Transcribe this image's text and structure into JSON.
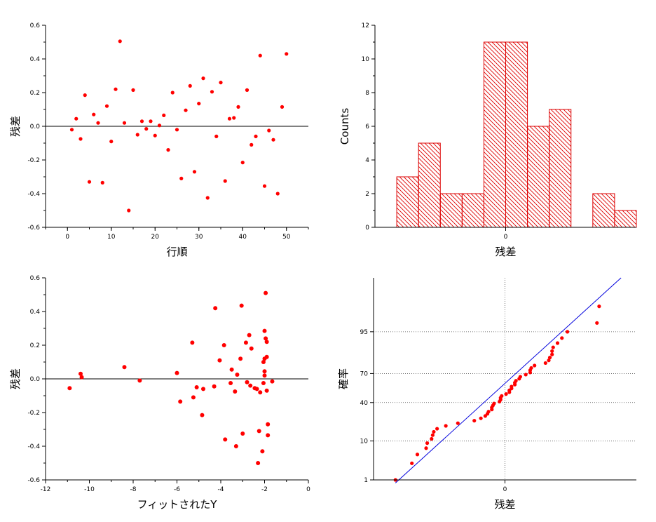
{
  "colors": {
    "marker": "#ff0000",
    "bar_stroke": "#dd0000",
    "fit_line": "#0000dd",
    "axis": "#000000",
    "grid": "#555555"
  },
  "chart_data": [
    {
      "type": "scatter",
      "xlabel": "行順",
      "ylabel": "残差",
      "xlim": [
        -5,
        55
      ],
      "ylim": [
        -0.6,
        0.6
      ],
      "xticks": [
        0,
        10,
        20,
        30,
        40,
        50
      ],
      "yticks": [
        -0.6,
        -0.4,
        -0.2,
        0.0,
        0.2,
        0.4,
        0.6
      ],
      "reference_line_y": 0,
      "x": [
        1,
        2,
        3,
        4,
        5,
        6,
        7,
        8,
        9,
        10,
        11,
        12,
        13,
        14,
        15,
        16,
        17,
        18,
        19,
        20,
        21,
        22,
        23,
        24,
        25,
        26,
        27,
        28,
        29,
        30,
        31,
        32,
        33,
        34,
        35,
        36,
        37,
        38,
        39,
        40,
        41,
        42,
        43,
        44,
        45,
        46,
        47,
        48,
        49,
        50
      ],
      "y": [
        -0.02,
        0.045,
        -0.075,
        0.185,
        -0.33,
        0.07,
        0.02,
        -0.335,
        0.12,
        -0.09,
        0.22,
        0.505,
        0.02,
        -0.5,
        0.215,
        -0.05,
        0.03,
        -0.015,
        0.03,
        -0.055,
        0.005,
        0.065,
        -0.14,
        0.2,
        -0.02,
        -0.31,
        0.095,
        0.24,
        -0.27,
        0.135,
        0.285,
        -0.425,
        0.205,
        -0.06,
        0.26,
        -0.325,
        0.045,
        0.05,
        0.115,
        -0.215,
        0.215,
        -0.11,
        -0.06,
        0.42,
        -0.355,
        -0.025,
        -0.08,
        -0.4,
        0.115,
        0.43
      ]
    },
    {
      "type": "bar",
      "xlabel": "残差",
      "ylabel": "Counts",
      "xlim": [
        -0.6,
        0.6
      ],
      "ylim": [
        0,
        12
      ],
      "xticks": [
        0
      ],
      "yticks": [
        0,
        2,
        4,
        6,
        8,
        10,
        12
      ],
      "bin_width": 0.1,
      "bin_starts": [
        -0.5,
        -0.4,
        -0.3,
        -0.2,
        -0.1,
        0.0,
        0.1,
        0.2,
        0.3,
        0.4,
        0.5
      ],
      "values": [
        3,
        5,
        2,
        2,
        11,
        11,
        6,
        7,
        0,
        2,
        1
      ]
    },
    {
      "type": "scatter",
      "xlabel": "フィットされたY",
      "ylabel": "残差",
      "xlim": [
        -12,
        0
      ],
      "ylim": [
        -0.6,
        0.6
      ],
      "xticks": [
        -12,
        -10,
        -8,
        -6,
        -4,
        -2,
        0
      ],
      "yticks": [
        -0.6,
        -0.4,
        -0.2,
        0.0,
        0.2,
        0.4,
        0.6
      ],
      "reference_line_y": 0,
      "x": [
        -10.9,
        -10.4,
        -10.35,
        -8.4,
        -7.7,
        -6.0,
        -5.85,
        -5.3,
        -5.25,
        -5.1,
        -4.85,
        -4.8,
        -4.3,
        -4.25,
        -4.05,
        -3.85,
        -3.8,
        -3.55,
        -3.5,
        -3.35,
        -3.3,
        -3.25,
        -3.1,
        -3.05,
        -3.0,
        -2.85,
        -2.8,
        -2.7,
        -2.65,
        -2.45,
        -2.35,
        -2.3,
        -2.25,
        -2.2,
        -2.1,
        -2.05,
        -2.05,
        -2.0,
        -2.0,
        -1.95,
        -1.95,
        -1.9,
        -1.9,
        -1.9,
        -1.85,
        -1.85,
        -1.65,
        -2.0,
        -2.6,
        -2.0
      ],
      "y": [
        -0.055,
        0.03,
        0.01,
        0.07,
        -0.01,
        0.035,
        -0.135,
        0.215,
        -0.11,
        -0.05,
        -0.215,
        -0.06,
        -0.045,
        0.42,
        0.11,
        0.2,
        -0.36,
        -0.025,
        0.055,
        -0.075,
        -0.4,
        0.025,
        0.12,
        0.435,
        -0.325,
        0.215,
        -0.02,
        0.26,
        -0.04,
        -0.055,
        -0.06,
        -0.5,
        -0.31,
        -0.08,
        -0.43,
        0.1,
        -0.025,
        0.285,
        0.02,
        0.24,
        0.51,
        0.22,
        0.13,
        -0.07,
        -0.27,
        -0.335,
        -0.015,
        0.045,
        0.18,
        0.12
      ]
    },
    {
      "type": "scatter",
      "xlabel": "残差",
      "ylabel": "確率",
      "xlim": [
        -0.6,
        0.6
      ],
      "yscale": "probability",
      "ylim": [
        1,
        99.9
      ],
      "xticks": [
        0
      ],
      "yticks": [
        1,
        10,
        40,
        70,
        95
      ],
      "grid": true,
      "reference_line_x": 0,
      "fit_line": [
        [
          -0.5,
          0.8
        ],
        [
          0.53,
          99.9
        ]
      ],
      "x": [
        -0.5,
        -0.425,
        -0.4,
        -0.36,
        -0.355,
        -0.335,
        -0.33,
        -0.325,
        -0.31,
        -0.27,
        -0.215,
        -0.14,
        -0.11,
        -0.09,
        -0.08,
        -0.075,
        -0.06,
        -0.06,
        -0.055,
        -0.05,
        -0.025,
        -0.02,
        -0.02,
        -0.015,
        0.005,
        0.02,
        0.02,
        0.03,
        0.03,
        0.045,
        0.045,
        0.05,
        0.065,
        0.07,
        0.095,
        0.115,
        0.115,
        0.12,
        0.135,
        0.185,
        0.2,
        0.205,
        0.215,
        0.215,
        0.22,
        0.24,
        0.26,
        0.285,
        0.42,
        0.43
      ],
      "y": [
        1.0,
        3.0,
        5.0,
        7.0,
        9.0,
        11.0,
        13.0,
        15.0,
        17.0,
        19.0,
        21.0,
        23.0,
        25.0,
        27.0,
        29.0,
        31.0,
        33.0,
        35.0,
        37.0,
        39.0,
        41.0,
        43.0,
        45.0,
        47.0,
        49.0,
        51.0,
        53.0,
        55.0,
        57.0,
        59.0,
        61.0,
        63.0,
        65.0,
        67.0,
        69.0,
        71.0,
        73.0,
        75.0,
        77.0,
        79.0,
        81.0,
        83.0,
        85.0,
        87.0,
        89.0,
        91.0,
        93.0,
        95.0,
        97.0,
        99.0
      ]
    }
  ]
}
